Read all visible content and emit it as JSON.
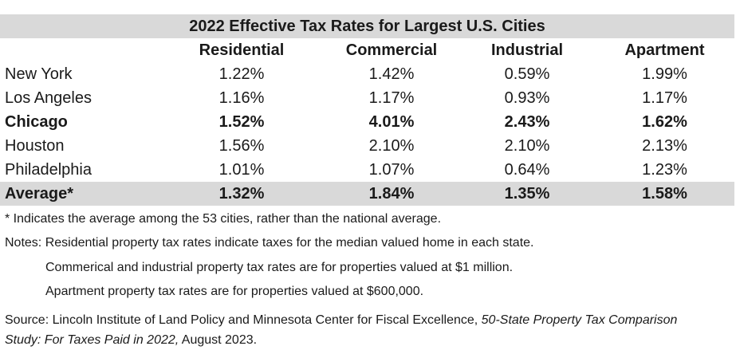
{
  "chart_data": {
    "type": "table",
    "title": "2022 Effective Tax Rates for Largest U.S. Cities",
    "columns": [
      "",
      "Residential",
      "Commercial",
      "Industrial",
      "Apartment"
    ],
    "rows": [
      {
        "city": "New York",
        "values": [
          "1.22%",
          "1.42%",
          "0.59%",
          "1.99%"
        ],
        "bold": false
      },
      {
        "city": "Los Angeles",
        "values": [
          "1.16%",
          "1.17%",
          "0.93%",
          "1.17%"
        ],
        "bold": false
      },
      {
        "city": "Chicago",
        "values": [
          "1.52%",
          "4.01%",
          "2.43%",
          "1.62%"
        ],
        "bold": true
      },
      {
        "city": "Houston",
        "values": [
          "1.56%",
          "2.10%",
          "2.10%",
          "2.13%"
        ],
        "bold": false
      },
      {
        "city": "Philadelphia",
        "values": [
          "1.01%",
          "1.07%",
          "0.64%",
          "1.23%"
        ],
        "bold": false
      }
    ],
    "average": {
      "city": "Average*",
      "values": [
        "1.32%",
        "1.84%",
        "1.35%",
        "1.58%"
      ]
    }
  },
  "footnotes": {
    "asterisk": "* Indicates the average among the 53 cities, rather than the national average.",
    "notes": "Notes: Residential property tax rates indicate taxes for the median valued home in each state.",
    "note2": "Commerical and industrial property tax rates are for properties valued at $1 million.",
    "note3": "Apartment property tax rates are for properties valued at $600,000."
  },
  "source": {
    "prefix": "Source: Lincoln Institute of Land Policy and Minnesota Center for Fiscal Excellence, ",
    "title_italic_1": "50-State Property Tax Comparison",
    "title_italic_2": "Study: For Taxes Paid in 2022,",
    "suffix": " August 2023."
  }
}
